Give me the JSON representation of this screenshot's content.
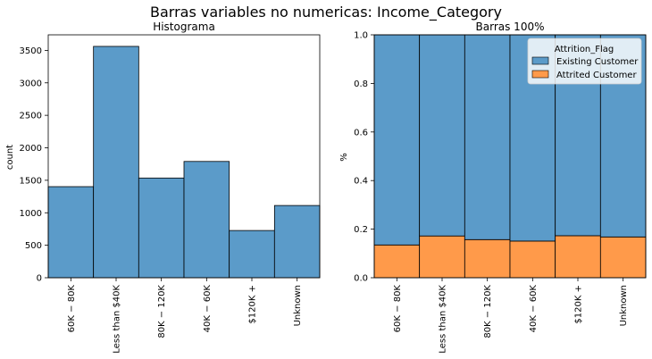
{
  "figure": {
    "suptitle": "Barras variables no numericas: Income_Category"
  },
  "chart_data": [
    {
      "type": "bar",
      "title": "Histograma",
      "xlabel": "",
      "ylabel": "count",
      "categories": [
        "60K − 80K",
        "Less than $40K",
        "80K − 120K",
        "40K − 60K",
        "$120K +",
        "Unknown"
      ],
      "values": [
        1402,
        3561,
        1535,
        1790,
        727,
        1112
      ],
      "ylim": [
        0,
        3739
      ],
      "yticks": [
        0,
        500,
        1000,
        1500,
        2000,
        2500,
        3000,
        3500
      ],
      "color": "#5b9bc9",
      "grid": false
    },
    {
      "type": "bar",
      "stacked": true,
      "title": "Barras 100%",
      "xlabel": "",
      "ylabel": "%",
      "categories": [
        "60K − 80K",
        "Less than $40K",
        "80K − 120K",
        "40K − 60K",
        "$120K +",
        "Unknown"
      ],
      "series": [
        {
          "name": "Attrited Customer",
          "color": "#ff9a4a",
          "values": [
            0.135,
            0.172,
            0.157,
            0.151,
            0.173,
            0.168
          ]
        },
        {
          "name": "Existing Customer",
          "color": "#5b9bc9",
          "values": [
            0.865,
            0.828,
            0.843,
            0.849,
            0.827,
            0.832
          ]
        }
      ],
      "ylim": [
        0,
        1.0
      ],
      "yticks": [
        "0.0",
        "0.2",
        "0.4",
        "0.6",
        "0.8",
        "1.0"
      ],
      "legend": {
        "title": "Attrition_Flag",
        "placement": "top-right",
        "entries": [
          "Existing Customer",
          "Attrited Customer"
        ]
      },
      "grid": false
    }
  ]
}
